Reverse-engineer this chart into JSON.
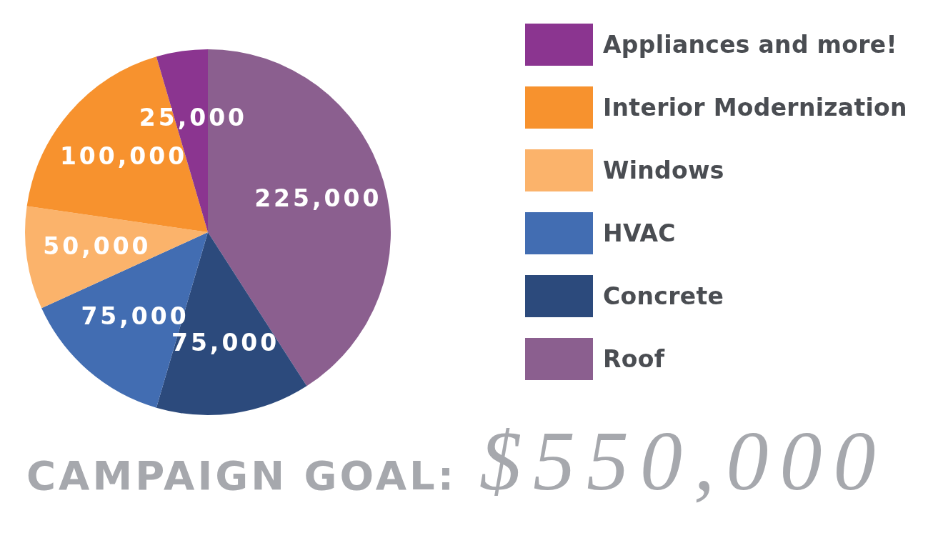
{
  "chart_data": {
    "type": "pie",
    "categories": [
      "Appliances and more!",
      "Interior Modernization",
      "Windows",
      "HVAC",
      "Concrete",
      "Roof"
    ],
    "values": [
      25000,
      100000,
      50000,
      75000,
      75000,
      225000
    ],
    "value_labels": [
      "25,000",
      "100,000",
      "50,000",
      "75,000",
      "75,000",
      "225,000"
    ],
    "colors": [
      "#8b3590",
      "#f7922e",
      "#fbb36b",
      "#426db2",
      "#2c4a7c",
      "#8b5f8f"
    ],
    "legend": "right",
    "annotations": [
      "CAMPAIGN GOAL:",
      "$550,000"
    ]
  }
}
